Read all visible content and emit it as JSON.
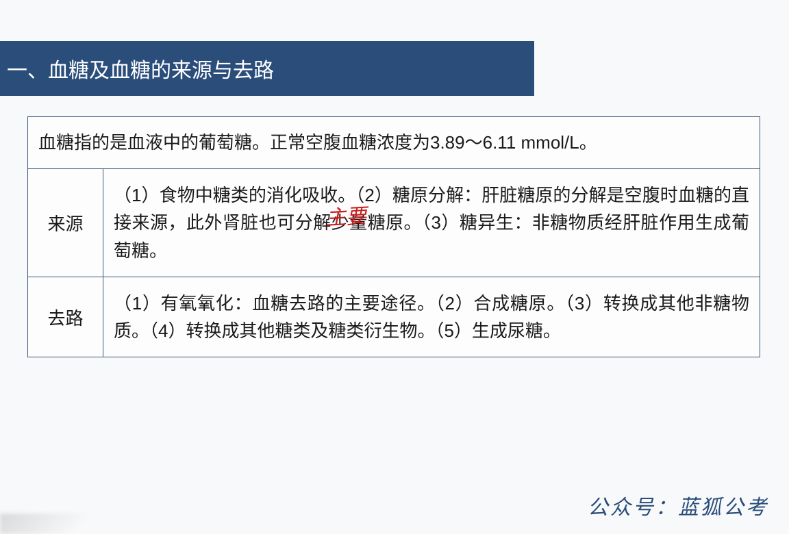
{
  "header": {
    "title": "一、血糖及血糖的来源与去路"
  },
  "table": {
    "intro": "血糖指的是血液中的葡萄糖。正常空腹血糖浓度为3.89～6.11 mmol/L。",
    "rows": [
      {
        "label": "来源",
        "content": "（1）食物中糖类的消化吸收。（2）糖原分解：肝脏糖原的分解是空腹时血糖的直接来源，此外肾脏也可分解少量糖原。（3）糖异生：非糖物质经肝脏作用生成葡萄糖。"
      },
      {
        "label": "去路",
        "content": "（1）有氧氧化：血糖去路的主要途径。（2）合成糖原。（3）转换成其他非糖物质。（4）转换成其他糖类及糖类衍生物。（5）生成尿糖。"
      }
    ]
  },
  "annotation": {
    "text": "主要"
  },
  "watermark": {
    "text": "公众号：蓝狐公考"
  },
  "style": {
    "header_bg": "#2a4d7a",
    "header_color": "#ffffff",
    "border_color": "#3b5578",
    "text_color": "#1a1a1a",
    "annotation_color": "#cc1b1b",
    "watermark_color": "#2a4d7a",
    "body_bg": "#f8f9fa"
  }
}
